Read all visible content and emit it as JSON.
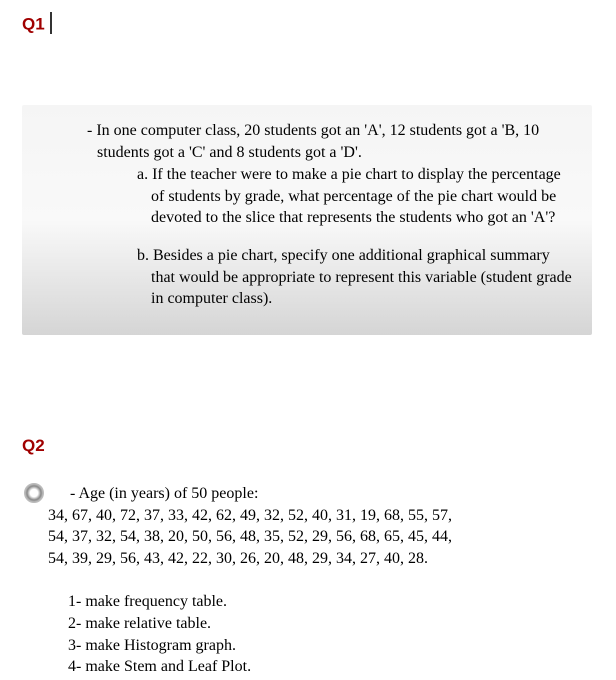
{
  "labels": {
    "q1": "Q1",
    "q2": "Q2"
  },
  "q1": {
    "intro": "- In one computer class, 20 students got an 'A', 12 students got a 'B, 10 students got a 'C' and 8 students got a 'D'.",
    "sub_a": "a. If the teacher were to make a pie chart to display the percentage of students by grade, what percentage of the pie chart would be devoted to the slice that represents the students who got an 'A'?",
    "sub_b": "b. Besides a pie chart, specify one additional graphical summary that would be appropriate to represent this variable (student grade in computer class)."
  },
  "q2": {
    "intro": "- Age (in years) of 50 people:",
    "data_line1": "34, 67, 40, 72, 37, 33, 42, 62, 49, 32, 52, 40, 31, 19, 68, 55, 57,",
    "data_line2": "54, 37, 32, 54, 38, 20, 50, 56, 48, 35, 52, 29, 56, 68, 65, 45, 44,",
    "data_line3": "54, 39, 29, 56, 43, 42, 22, 30, 26, 20, 48, 29, 34, 27, 40, 28.",
    "tasks": {
      "t1": "1- make frequency table.",
      "t2": "2- make relative table.",
      "t3": "3- make Histogram graph.",
      "t4": "4- make Stem and Leaf Plot."
    }
  },
  "colors": {
    "label_color": "#a00000",
    "text_color": "#000000",
    "gradient_start": "#f5f5f5",
    "gradient_end": "#d5d5d5",
    "background": "#ffffff"
  },
  "typography": {
    "label_font": "Arial",
    "label_size_pt": 13,
    "label_weight": "bold",
    "body_font": "Times New Roman",
    "body_size_pt": 12
  }
}
